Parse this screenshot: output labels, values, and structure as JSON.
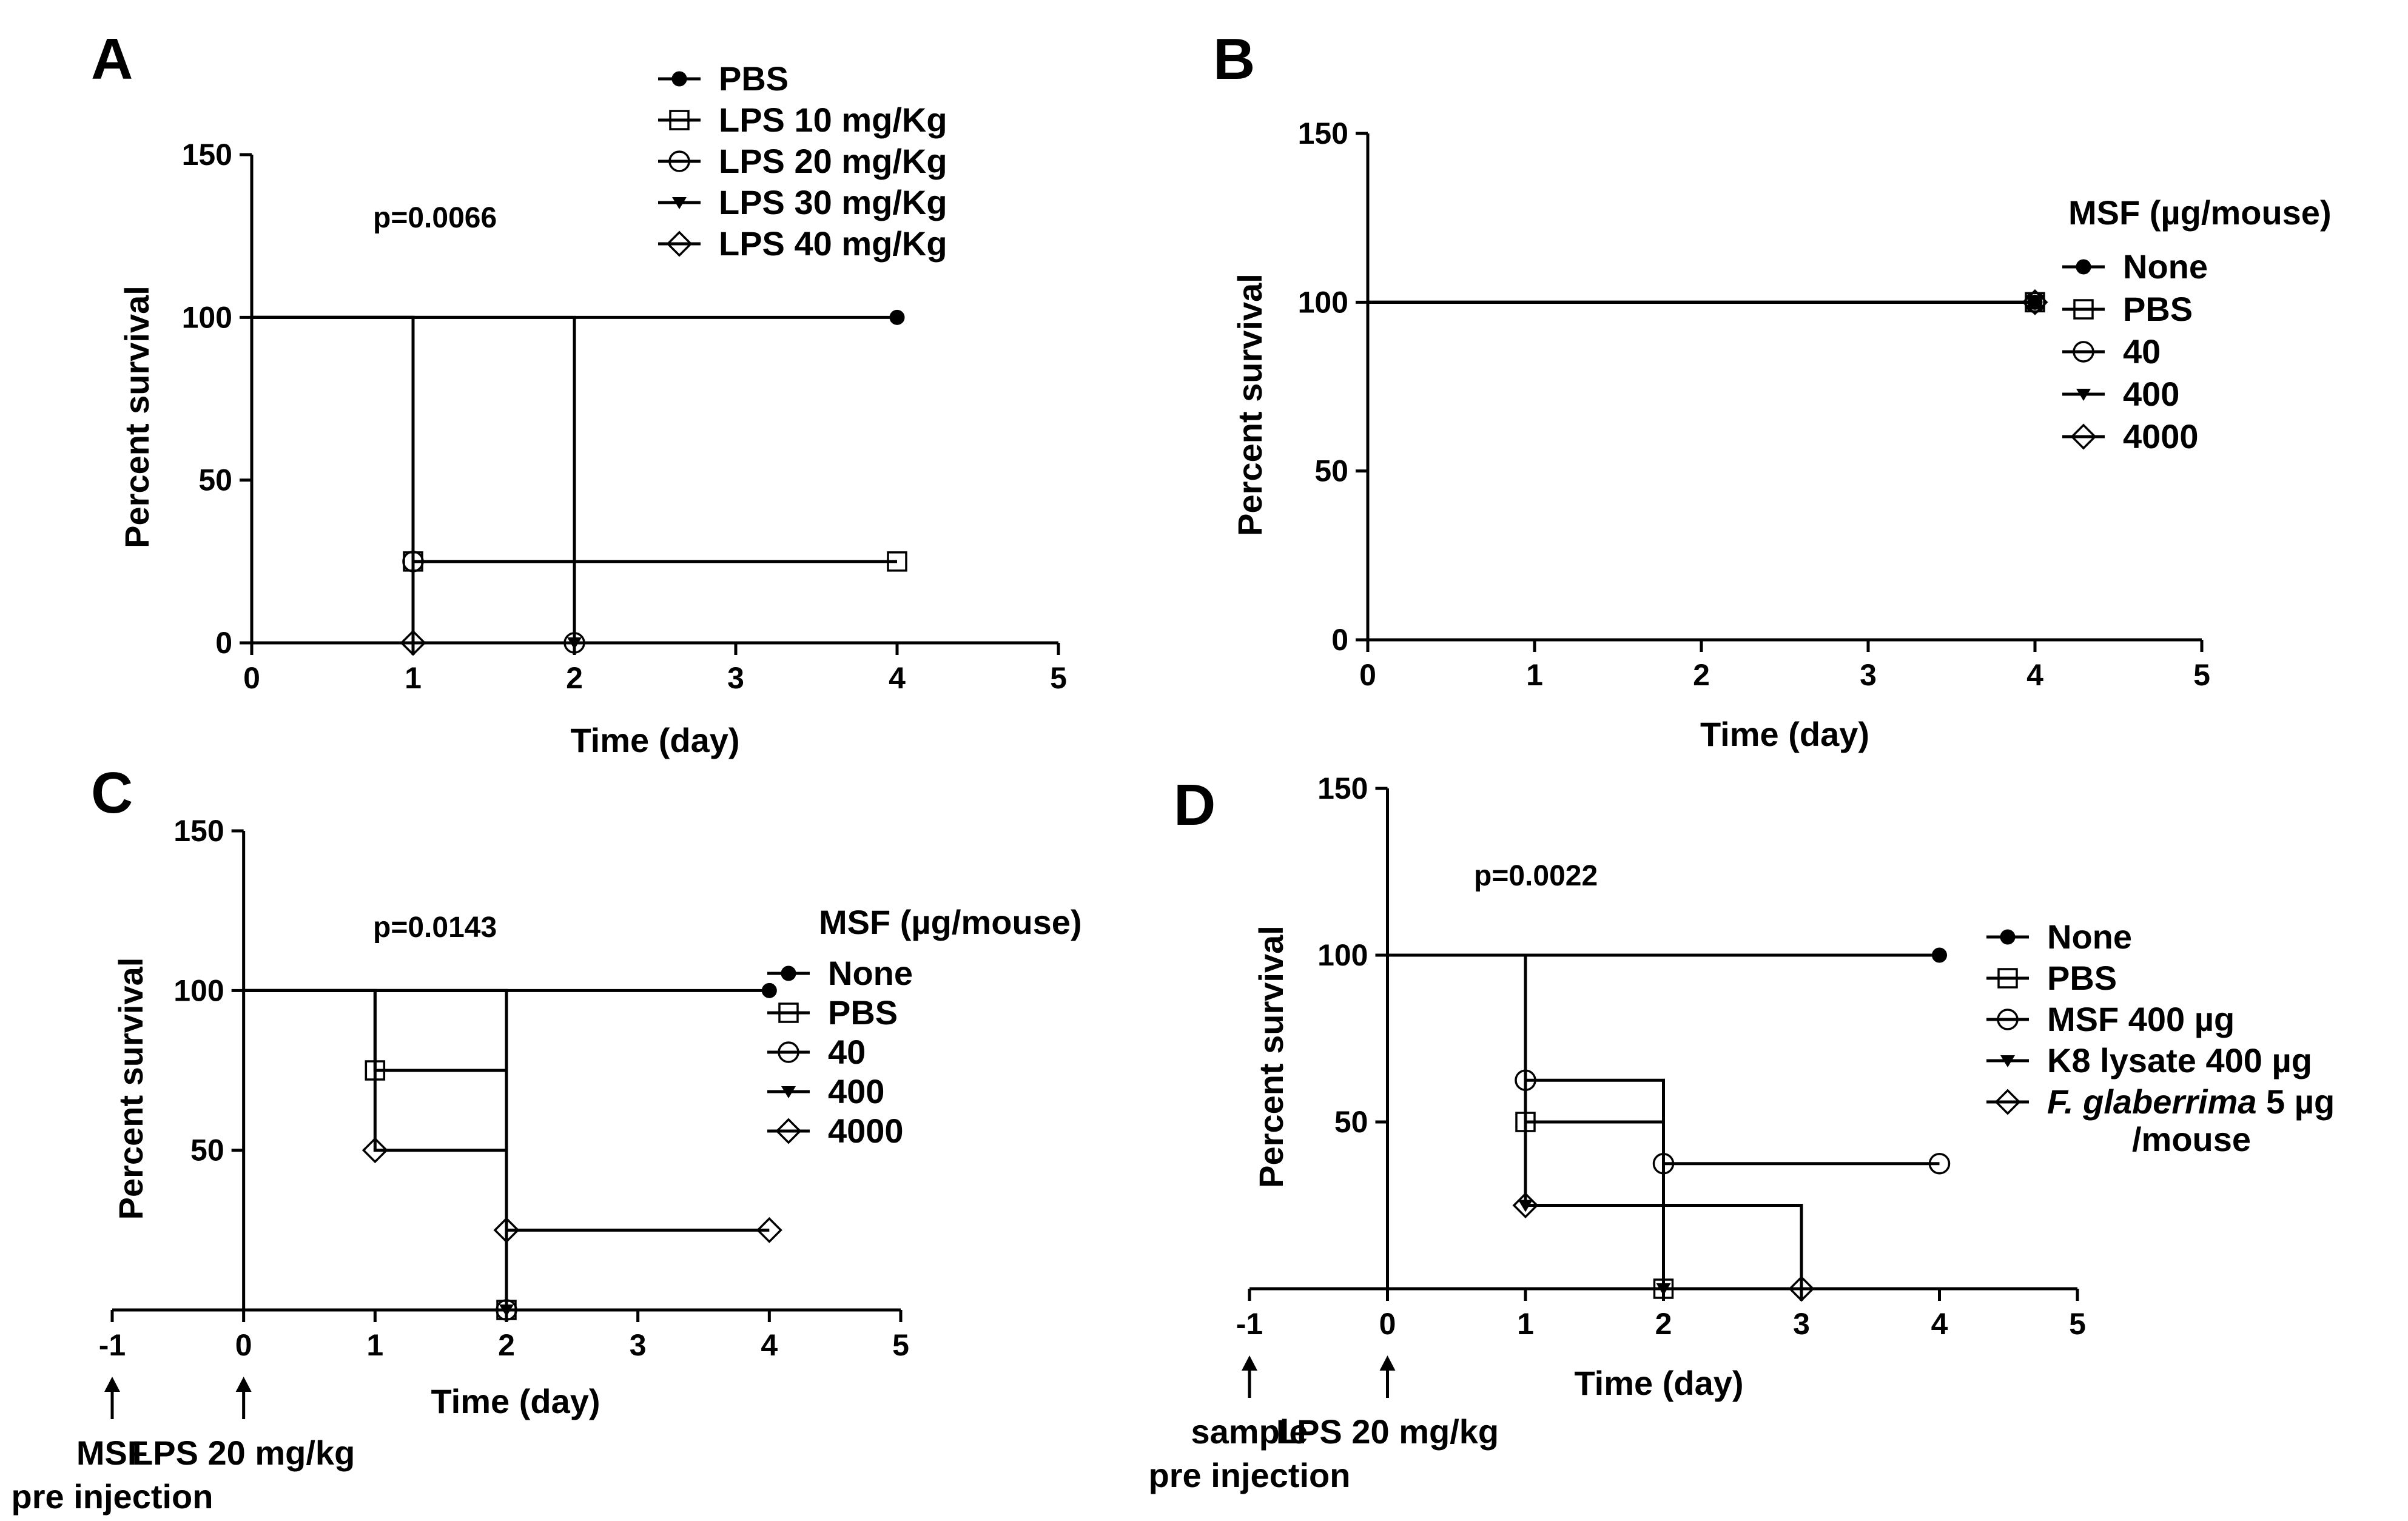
{
  "figure": {
    "panels": [
      "A",
      "B",
      "C",
      "D"
    ]
  },
  "chart_data": [
    {
      "panel": "A",
      "type": "line",
      "step": true,
      "title": "",
      "xlabel": "Time (day)",
      "ylabel": "Percent survival",
      "xlim": [
        0,
        5
      ],
      "ylim": [
        0,
        150
      ],
      "xticks": [
        "0",
        "1",
        "2",
        "3",
        "4",
        "5"
      ],
      "yticks": [
        "0",
        "50",
        "100",
        "150"
      ],
      "annotation": "p=0.0066",
      "legend_title": "",
      "legend_placement": "top-right",
      "series": [
        {
          "name": "PBS",
          "marker": "filled-circle",
          "x": [
            0,
            4
          ],
          "y": [
            100,
            100
          ],
          "end": true
        },
        {
          "name": "LPS 10 mg/Kg",
          "marker": "square",
          "x": [
            0,
            1,
            4
          ],
          "y": [
            100,
            25,
            25
          ],
          "end": true
        },
        {
          "name": "LPS 20 mg/Kg",
          "marker": "circle",
          "x": [
            0,
            1,
            2
          ],
          "y": [
            100,
            25,
            0
          ],
          "end": false
        },
        {
          "name": "LPS 30 mg/Kg",
          "marker": "triangle-down",
          "x": [
            0,
            2
          ],
          "y": [
            100,
            0
          ],
          "end": false
        },
        {
          "name": "LPS 40 mg/Kg",
          "marker": "diamond",
          "x": [
            0,
            1
          ],
          "y": [
            100,
            0
          ],
          "end": false
        }
      ]
    },
    {
      "panel": "B",
      "type": "line",
      "step": true,
      "title": "",
      "xlabel": "Time (day)",
      "ylabel": "Percent survival",
      "xlim": [
        0,
        5
      ],
      "ylim": [
        0,
        150
      ],
      "xticks": [
        "0",
        "1",
        "2",
        "3",
        "4",
        "5"
      ],
      "yticks": [
        "0",
        "50",
        "100",
        "150"
      ],
      "annotation": "",
      "legend_title": "MSF (µg/mouse)",
      "legend_placement": "right",
      "series": [
        {
          "name": "None",
          "marker": "filled-circle",
          "x": [
            0,
            4
          ],
          "y": [
            100,
            100
          ],
          "end": true
        },
        {
          "name": "PBS",
          "marker": "square",
          "x": [
            0,
            4
          ],
          "y": [
            100,
            100
          ],
          "end": true
        },
        {
          "name": "40",
          "marker": "circle",
          "x": [
            0,
            4
          ],
          "y": [
            100,
            100
          ],
          "end": true
        },
        {
          "name": "400",
          "marker": "triangle-down",
          "x": [
            0,
            4
          ],
          "y": [
            100,
            100
          ],
          "end": true
        },
        {
          "name": "4000",
          "marker": "diamond",
          "x": [
            0,
            4
          ],
          "y": [
            100,
            100
          ],
          "end": true
        }
      ]
    },
    {
      "panel": "C",
      "type": "line",
      "step": true,
      "title": "",
      "xlabel": "Time (day)",
      "ylabel": "Percent survival",
      "xlim": [
        -1,
        5
      ],
      "ylim": [
        0,
        150
      ],
      "xticks": [
        "-1",
        "0",
        "1",
        "2",
        "3",
        "4",
        "5"
      ],
      "yticks": [
        "50",
        "100",
        "150"
      ],
      "annotation": "p=0.0143",
      "legend_title": "MSF (µg/mouse)",
      "legend_placement": "right",
      "arrows": [
        {
          "x": -1,
          "label_lines": [
            "MSF",
            "pre injection"
          ]
        },
        {
          "x": 0,
          "label_lines": [
            "LPS 20 mg/kg"
          ]
        }
      ],
      "series": [
        {
          "name": "None",
          "marker": "filled-circle",
          "x": [
            0,
            4
          ],
          "y": [
            100,
            100
          ],
          "end": true
        },
        {
          "name": "PBS",
          "marker": "square",
          "x": [
            0,
            1,
            2
          ],
          "y": [
            100,
            75,
            0
          ],
          "end": false
        },
        {
          "name": "40",
          "marker": "circle",
          "x": [
            0,
            2
          ],
          "y": [
            100,
            0
          ],
          "end": false
        },
        {
          "name": "400",
          "marker": "triangle-down",
          "x": [
            0,
            2
          ],
          "y": [
            100,
            0
          ],
          "end": false
        },
        {
          "name": "4000",
          "marker": "diamond",
          "x": [
            0,
            1,
            2,
            4
          ],
          "y": [
            100,
            50,
            25,
            25
          ],
          "end": true
        }
      ]
    },
    {
      "panel": "D",
      "type": "line",
      "step": true,
      "title": "",
      "xlabel": "Time (day)",
      "ylabel": "Percent survival",
      "xlim": [
        -1,
        5
      ],
      "ylim": [
        0,
        150
      ],
      "xticks": [
        "-1",
        "0",
        "1",
        "2",
        "3",
        "4",
        "5"
      ],
      "yticks": [
        "50",
        "100",
        "150"
      ],
      "annotation": "p=0.0022",
      "legend_title": "",
      "legend_placement": "right",
      "arrows": [
        {
          "x": -1,
          "label_lines": [
            "sample",
            "pre injection"
          ]
        },
        {
          "x": 0,
          "label_lines": [
            "LPS 20 mg/kg"
          ]
        }
      ],
      "series": [
        {
          "name": "None",
          "marker": "filled-circle",
          "x": [
            0,
            4
          ],
          "y": [
            100,
            100
          ],
          "end": true
        },
        {
          "name": "PBS",
          "marker": "square",
          "x": [
            0,
            1,
            2
          ],
          "y": [
            100,
            50,
            0
          ],
          "end": false
        },
        {
          "name": "MSF 400 µg",
          "marker": "circle",
          "x": [
            0,
            1,
            2,
            4
          ],
          "y": [
            100,
            62.5,
            37.5,
            37.5
          ],
          "end": true
        },
        {
          "name": "K8 lysate 400 µg",
          "marker": "triangle-down",
          "x": [
            0,
            1,
            2
          ],
          "y": [
            100,
            25,
            0
          ],
          "end": false
        },
        {
          "name": "F. glaberrima 5 µg",
          "name_line2": "/mouse",
          "marker": "diamond",
          "x": [
            0,
            1,
            3
          ],
          "y": [
            100,
            25,
            0
          ],
          "end": false
        }
      ]
    }
  ]
}
